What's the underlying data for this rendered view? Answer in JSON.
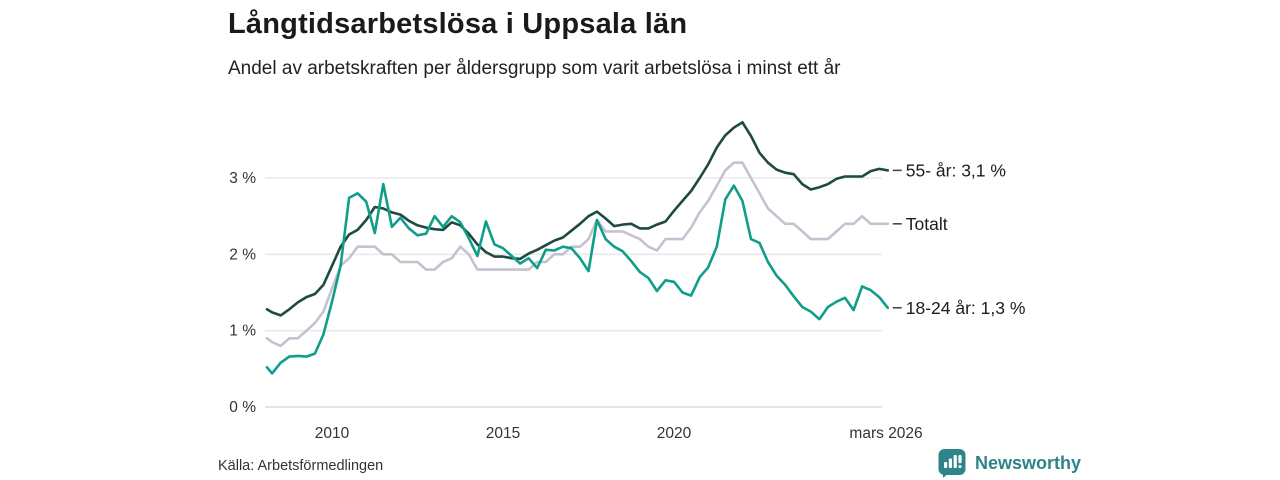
{
  "footer": {
    "source": "Källa: Arbetsförmedlingen",
    "brand": "Newsworthy"
  },
  "colors": {
    "series_55": "#1d4b3d",
    "series_total": "#c5c2d0",
    "series_1824": "#0f9e8a",
    "gridline": "#eae8ef",
    "baseline": "#dcdae2",
    "tick_text": "#333333",
    "label_text": "#1c1c1c",
    "brand_teal": "#2f8489",
    "connector": "#4a4a4a"
  },
  "chart_data": {
    "type": "line",
    "title": "Långtidsarbetslösa i Uppsala län",
    "subtitle": "Andel av arbetskraften per åldersgrupp som varit arbetslösa i minst ett år",
    "xlabel": "",
    "ylabel": "",
    "grid": true,
    "legend_position": "right-end-labels",
    "x_range": [
      2008.05,
      2026.35
    ],
    "ylim": [
      0,
      3.9
    ],
    "y_ticks": [
      {
        "y": 0,
        "label": "0 %"
      },
      {
        "y": 1,
        "label": "1 %"
      },
      {
        "y": 2,
        "label": "2 %"
      },
      {
        "y": 3,
        "label": "3 %"
      }
    ],
    "x_ticks": [
      {
        "x": 2010,
        "label": "2010"
      },
      {
        "x": 2015,
        "label": "2015"
      },
      {
        "x": 2020,
        "label": "2020"
      },
      {
        "x": 2026.2,
        "label": "mars 2026"
      }
    ],
    "x": [
      2008.1,
      2008.25,
      2008.5,
      2008.75,
      2009.0,
      2009.25,
      2009.5,
      2009.75,
      2010.0,
      2010.25,
      2010.5,
      2010.75,
      2011.0,
      2011.25,
      2011.5,
      2011.75,
      2012.0,
      2012.25,
      2012.5,
      2012.75,
      2013.0,
      2013.25,
      2013.5,
      2013.75,
      2014.0,
      2014.25,
      2014.5,
      2014.75,
      2015.0,
      2015.25,
      2015.5,
      2015.75,
      2016.0,
      2016.25,
      2016.5,
      2016.75,
      2017.0,
      2017.25,
      2017.5,
      2017.75,
      2018.0,
      2018.25,
      2018.5,
      2018.75,
      2019.0,
      2019.25,
      2019.5,
      2019.75,
      2020.0,
      2020.25,
      2020.5,
      2020.75,
      2021.0,
      2021.25,
      2021.5,
      2021.75,
      2022.0,
      2022.25,
      2022.5,
      2022.75,
      2023.0,
      2023.25,
      2023.5,
      2023.75,
      2024.0,
      2024.25,
      2024.5,
      2024.75,
      2025.0,
      2025.25,
      2025.5,
      2025.75,
      2026.0,
      2026.25
    ],
    "series": [
      {
        "name": "55- år",
        "label": "55- år: 3,1 %",
        "end_value": "3,1 %",
        "color": "#1d4b3d",
        "values": [
          1.28,
          1.24,
          1.2,
          1.28,
          1.37,
          1.44,
          1.48,
          1.6,
          1.85,
          2.1,
          2.26,
          2.32,
          2.45,
          2.62,
          2.6,
          2.55,
          2.52,
          2.44,
          2.38,
          2.35,
          2.33,
          2.32,
          2.42,
          2.38,
          2.27,
          2.13,
          2.03,
          1.97,
          1.97,
          1.95,
          1.94,
          2.01,
          2.06,
          2.12,
          2.18,
          2.22,
          2.31,
          2.4,
          2.5,
          2.56,
          2.47,
          2.37,
          2.39,
          2.4,
          2.34,
          2.34,
          2.39,
          2.43,
          2.57,
          2.7,
          2.83,
          3.0,
          3.18,
          3.4,
          3.56,
          3.66,
          3.73,
          3.55,
          3.33,
          3.2,
          3.11,
          3.07,
          3.05,
          2.92,
          2.85,
          2.88,
          2.92,
          2.99,
          3.02,
          3.02,
          3.02,
          3.09,
          3.12,
          3.1
        ]
      },
      {
        "name": "Totalt",
        "label": "Totalt",
        "end_value": "2,4 %",
        "color": "#c5c2d0",
        "values": [
          0.9,
          0.85,
          0.8,
          0.9,
          0.9,
          1.0,
          1.1,
          1.25,
          1.55,
          1.85,
          1.95,
          2.1,
          2.1,
          2.1,
          2.0,
          2.0,
          1.9,
          1.9,
          1.9,
          1.8,
          1.8,
          1.9,
          1.95,
          2.1,
          2.0,
          1.8,
          1.8,
          1.8,
          1.8,
          1.8,
          1.8,
          1.8,
          1.9,
          1.9,
          2.0,
          2.0,
          2.1,
          2.1,
          2.2,
          2.45,
          2.3,
          2.3,
          2.3,
          2.25,
          2.2,
          2.1,
          2.05,
          2.2,
          2.2,
          2.2,
          2.35,
          2.55,
          2.7,
          2.9,
          3.1,
          3.2,
          3.2,
          3.0,
          2.8,
          2.6,
          2.5,
          2.4,
          2.4,
          2.3,
          2.2,
          2.2,
          2.2,
          2.3,
          2.4,
          2.4,
          2.5,
          2.4,
          2.4,
          2.4
        ]
      },
      {
        "name": "18-24 år",
        "label": "18-24 år: 1,3 %",
        "end_value": "1,3 %",
        "color": "#0f9e8a",
        "values": [
          0.52,
          0.44,
          0.58,
          0.66,
          0.67,
          0.66,
          0.7,
          0.95,
          1.38,
          1.85,
          2.74,
          2.8,
          2.69,
          2.28,
          2.92,
          2.36,
          2.48,
          2.34,
          2.25,
          2.27,
          2.5,
          2.36,
          2.5,
          2.42,
          2.21,
          1.98,
          2.43,
          2.13,
          2.08,
          1.98,
          1.88,
          1.95,
          1.82,
          2.06,
          2.05,
          2.1,
          2.08,
          1.95,
          1.78,
          2.45,
          2.2,
          2.1,
          2.04,
          1.91,
          1.77,
          1.69,
          1.52,
          1.66,
          1.64,
          1.5,
          1.46,
          1.7,
          1.83,
          2.1,
          2.72,
          2.9,
          2.7,
          2.2,
          2.15,
          1.9,
          1.72,
          1.6,
          1.45,
          1.31,
          1.25,
          1.15,
          1.31,
          1.38,
          1.43,
          1.27,
          1.58,
          1.53,
          1.44,
          1.3
        ]
      }
    ]
  }
}
